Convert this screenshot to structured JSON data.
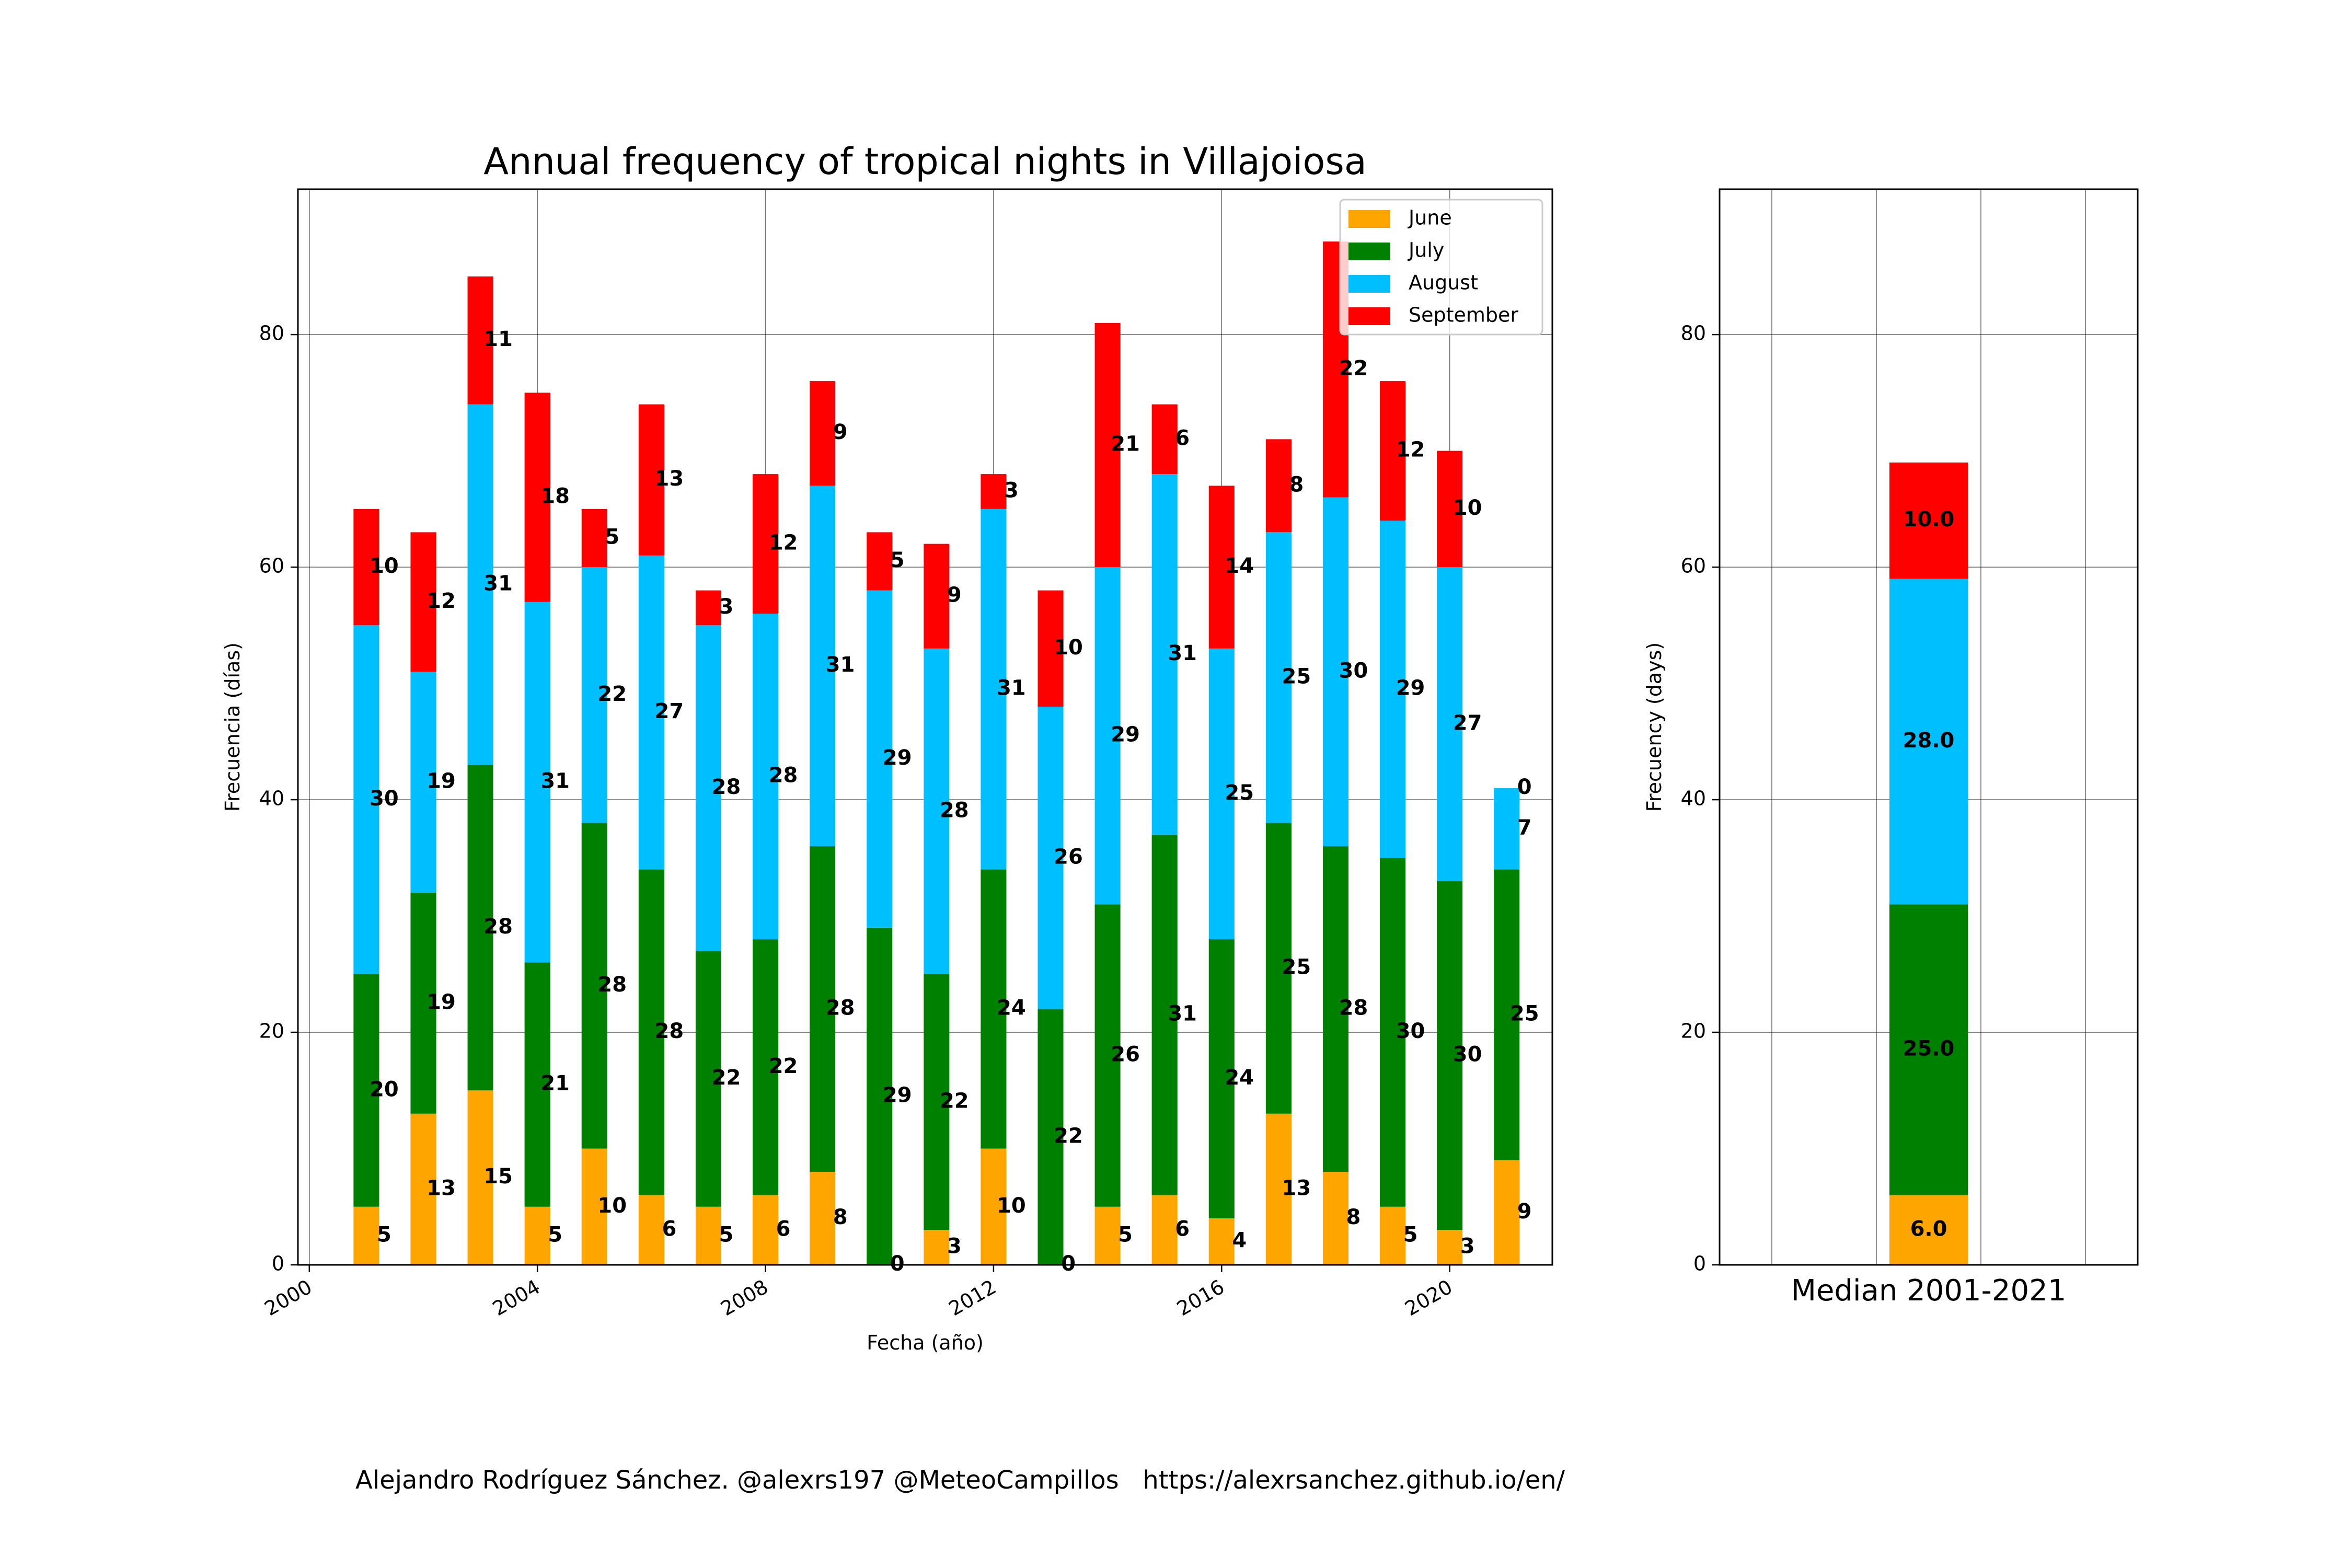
{
  "chart_data": [
    {
      "type": "bar",
      "stacked": true,
      "title": "Annual frequency of tropical nights in Villajoiosa",
      "xlabel": "Fecha (año)",
      "ylabel": "Frecuencia (días)",
      "xlim": [
        1999.8,
        2021.8
      ],
      "ylim": [
        0,
        92.5
      ],
      "xticks": [
        2000,
        2004,
        2008,
        2012,
        2016,
        2020
      ],
      "yticks": [
        0,
        20,
        40,
        60,
        80
      ],
      "grid": true,
      "legend_position": "top-right",
      "x": [
        2001,
        2002,
        2003,
        2004,
        2005,
        2006,
        2007,
        2008,
        2009,
        2010,
        2011,
        2012,
        2013,
        2014,
        2015,
        2016,
        2017,
        2018,
        2019,
        2020,
        2021
      ],
      "series": [
        {
          "name": "June",
          "color": "#ffa500",
          "values": [
            5,
            13,
            15,
            5,
            10,
            6,
            5,
            6,
            8,
            0,
            3,
            10,
            0,
            5,
            6,
            4,
            13,
            8,
            5,
            3,
            9
          ]
        },
        {
          "name": "July",
          "color": "#008000",
          "values": [
            20,
            19,
            28,
            21,
            28,
            28,
            22,
            22,
            28,
            29,
            22,
            24,
            22,
            26,
            31,
            24,
            25,
            28,
            30,
            30,
            25
          ]
        },
        {
          "name": "August",
          "color": "#00bfff",
          "values": [
            30,
            19,
            31,
            31,
            22,
            27,
            28,
            28,
            31,
            29,
            28,
            31,
            26,
            29,
            31,
            25,
            25,
            30,
            29,
            27,
            7
          ]
        },
        {
          "name": "September",
          "color": "#ff0000",
          "values": [
            10,
            12,
            11,
            18,
            5,
            13,
            3,
            12,
            9,
            5,
            9,
            3,
            10,
            21,
            6,
            14,
            8,
            22,
            12,
            10,
            0
          ]
        }
      ]
    },
    {
      "type": "bar",
      "stacked": true,
      "xlabel": "Median 2001-2021",
      "ylabel": "Frecuency (days)",
      "ylim": [
        0,
        92.5
      ],
      "yticks": [
        0,
        20,
        40,
        60,
        80
      ],
      "grid": true,
      "series": [
        {
          "name": "June",
          "color": "#ffa500",
          "values": [
            6.0
          ]
        },
        {
          "name": "July",
          "color": "#008000",
          "values": [
            25.0
          ]
        },
        {
          "name": "August",
          "color": "#00bfff",
          "values": [
            28.0
          ]
        },
        {
          "name": "September",
          "color": "#ff0000",
          "values": [
            10.0
          ]
        }
      ]
    }
  ],
  "footer": "Alejandro Rodríguez Sánchez. @alexrs197 @MeteoCampillos   https://alexrsanchez.github.io/en/"
}
